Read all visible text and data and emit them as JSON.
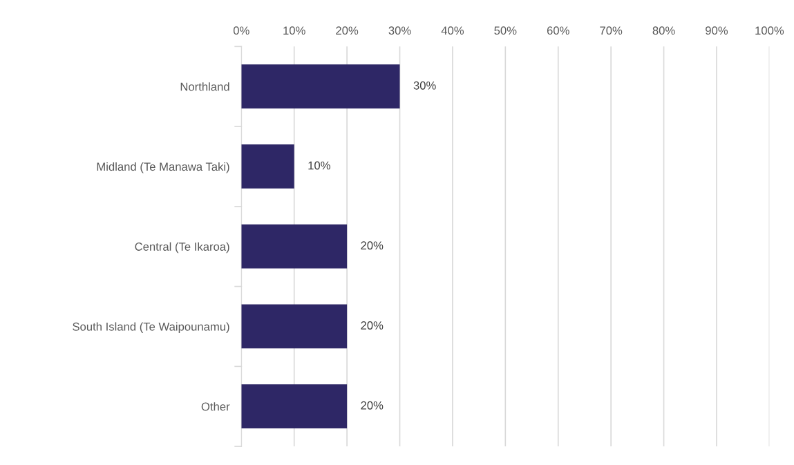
{
  "chart_data": {
    "type": "bar",
    "orientation": "horizontal",
    "categories": [
      "Northland",
      "Midland (Te Manawa Taki)",
      "Central (Te Ikaroa)",
      "South Island (Te Waipounamu)",
      "Other"
    ],
    "values": [
      30,
      10,
      20,
      20,
      20
    ],
    "value_labels": [
      "30%",
      "10%",
      "20%",
      "20%",
      "20%"
    ],
    "color": "#2e2766",
    "xlim": [
      0,
      100
    ],
    "xticks": [
      {
        "value": 0,
        "label": "0%"
      },
      {
        "value": 10,
        "label": "10%"
      },
      {
        "value": 20,
        "label": "20%"
      },
      {
        "value": 30,
        "label": "30%"
      },
      {
        "value": 40,
        "label": "40%"
      },
      {
        "value": 50,
        "label": "50%"
      },
      {
        "value": 60,
        "label": "60%"
      },
      {
        "value": 70,
        "label": "70%"
      },
      {
        "value": 80,
        "label": "80%"
      },
      {
        "value": 90,
        "label": "90%"
      },
      {
        "value": 100,
        "label": "100%"
      }
    ],
    "grid": "x"
  }
}
